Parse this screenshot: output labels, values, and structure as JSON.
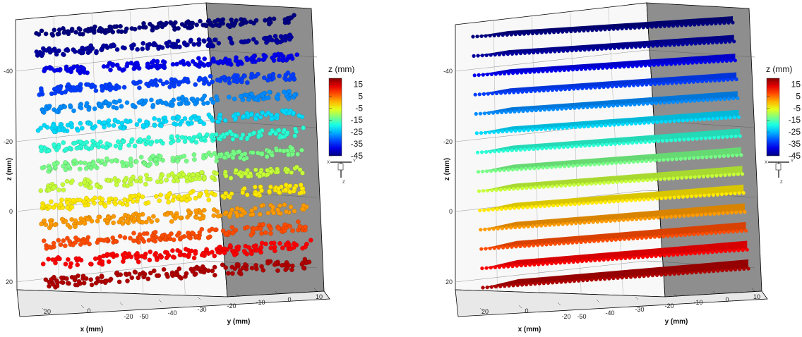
{
  "chart_data": [
    {
      "type": "scatter",
      "title": "",
      "xlabel": "x (mm)",
      "ylabel": "y (mm)",
      "zlabel": "z (mm)",
      "x_ticks": [
        "20",
        "0",
        "-20"
      ],
      "y_ticks": [
        "-50",
        "-40",
        "-30",
        "-20",
        "-10",
        "0",
        "10"
      ],
      "z_ticks": [
        "-40",
        "-20",
        "0",
        "20"
      ],
      "layer_count": 14,
      "layer_z": [
        -48,
        -43,
        -38,
        -33,
        -28,
        -23,
        -18,
        -13,
        -8,
        -3,
        2,
        7,
        12,
        17
      ],
      "distribution": "random",
      "colorbar": {
        "title": "z (mm)",
        "ticks": [
          "15",
          "5",
          "-5",
          "-15",
          "-25",
          "-35",
          "-45"
        ],
        "min": -45,
        "max": 20
      }
    },
    {
      "type": "scatter",
      "title": "",
      "xlabel": "x (mm)",
      "ylabel": "y (mm)",
      "zlabel": "z (mm)",
      "x_ticks": [
        "20",
        "0",
        "-20"
      ],
      "y_ticks": [
        "-50",
        "-40",
        "-30",
        "-20",
        "-10",
        "0",
        "10"
      ],
      "z_ticks": [
        "-40",
        "-20",
        "0",
        "20"
      ],
      "layer_count": 14,
      "layer_z": [
        -48,
        -43,
        -38,
        -33,
        -28,
        -23,
        -18,
        -13,
        -8,
        -3,
        2,
        7,
        12,
        17
      ],
      "distribution": "regular",
      "colorbar": {
        "title": "z (mm)",
        "ticks": [
          "15",
          "5",
          "-5",
          "-15",
          "-25",
          "-35",
          "-45"
        ],
        "min": -45,
        "max": 20
      }
    }
  ],
  "triad": {
    "x": "X",
    "y": "Y",
    "z": "Z"
  },
  "colors": {
    "wall_light": "#f8f8f8",
    "wall_dark": "#8e8e8e",
    "frame": "#000000"
  }
}
